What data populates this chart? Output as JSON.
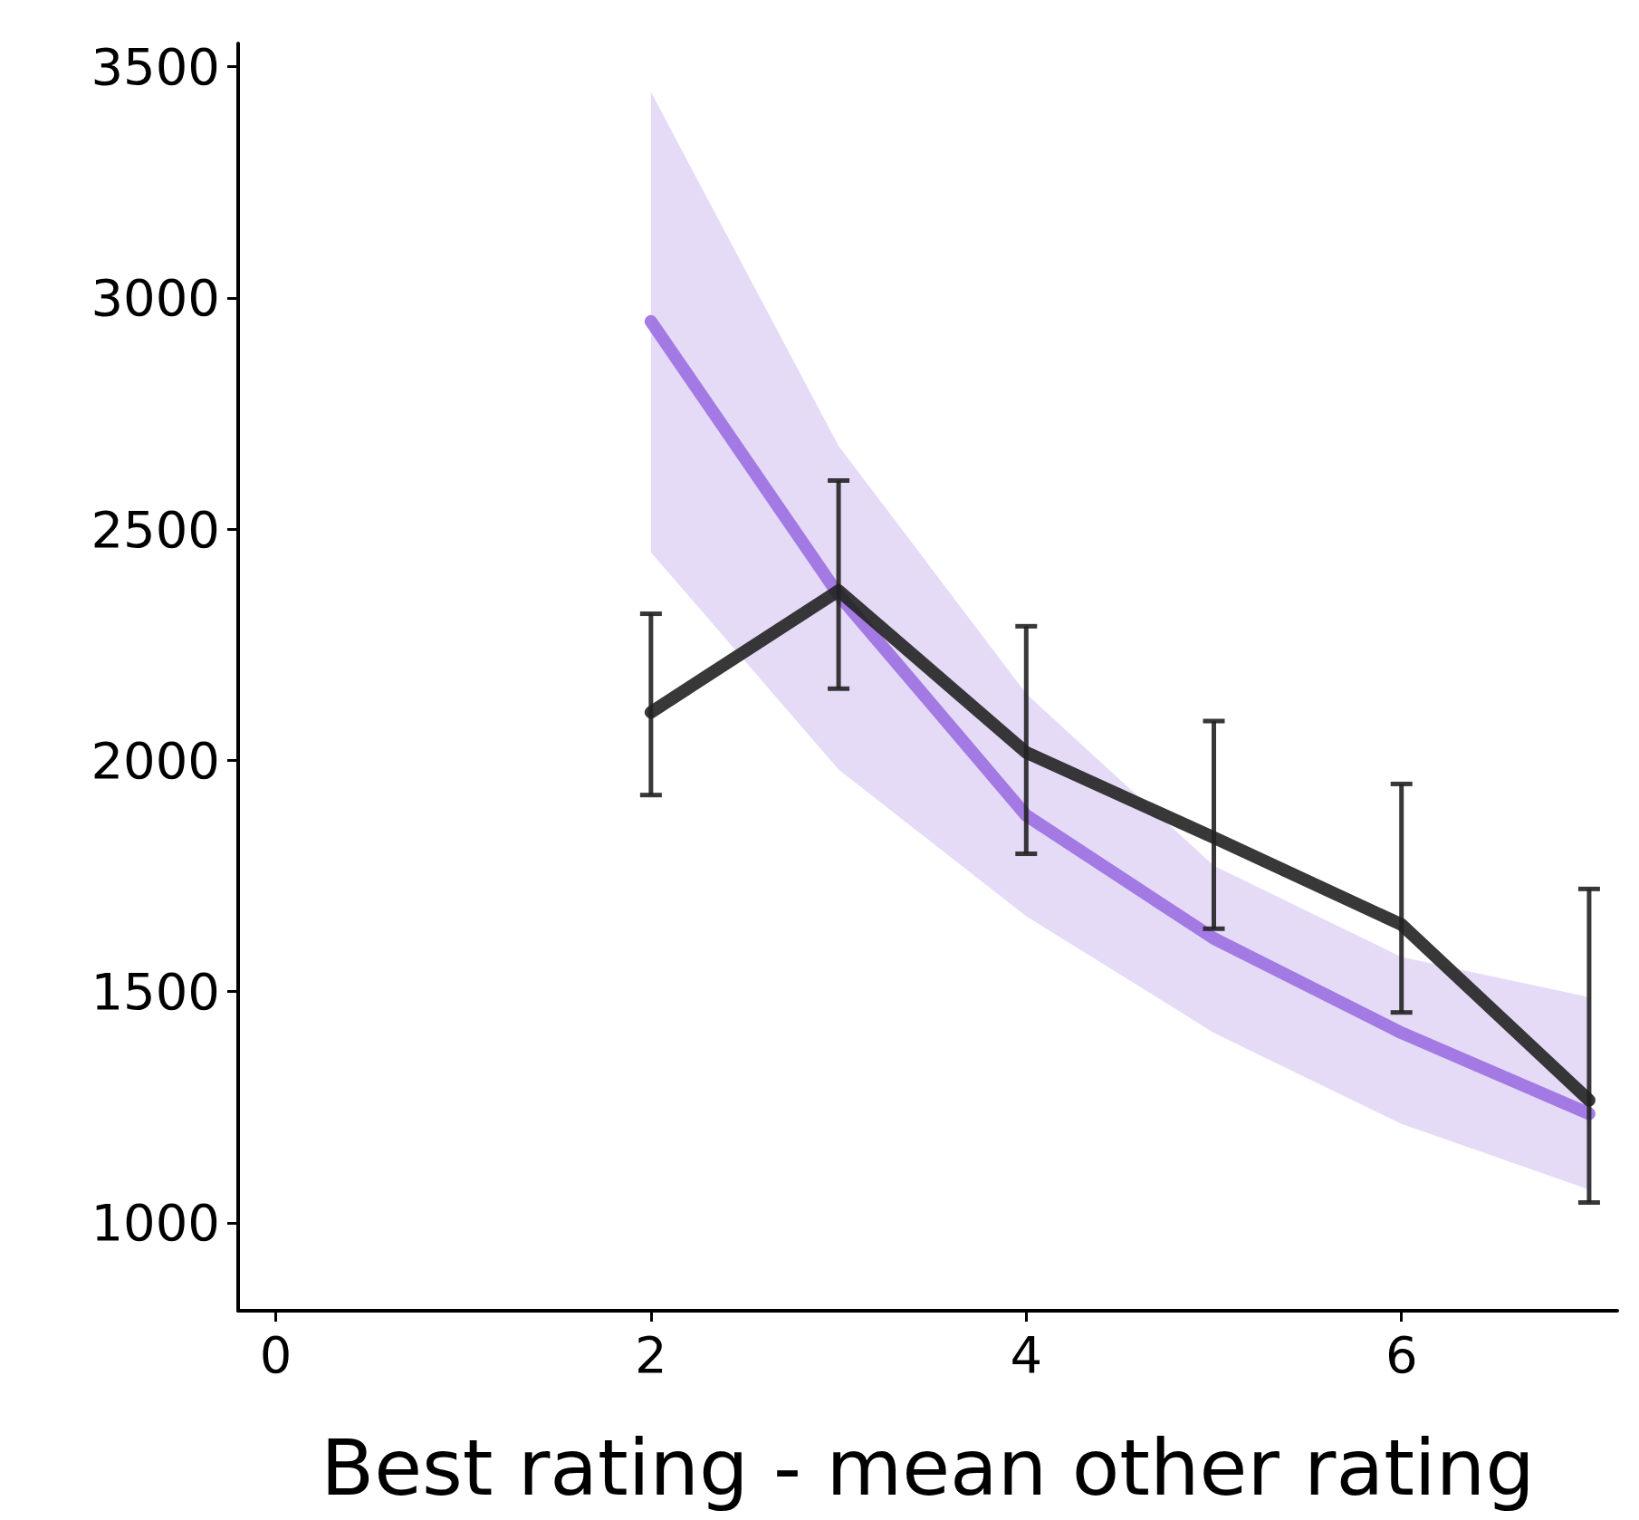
{
  "chart_data": {
    "type": "line",
    "xlabel": "Best rating - mean other rating",
    "x": [
      2,
      3,
      4,
      5,
      6,
      7
    ],
    "xlim": [
      -0.2,
      7.15
    ],
    "xticks": [
      0,
      2,
      4,
      6
    ],
    "ylim": [
      810,
      3550
    ],
    "yticks": [
      1000,
      1500,
      2000,
      2500,
      3000,
      3500
    ],
    "grid": false,
    "marker": "none",
    "line_style": "solid",
    "series": [
      {
        "color": "#9b6fe0",
        "values": [
          2949,
          2358,
          1881,
          1615,
          1411,
          1236
        ],
        "lower": [
          2450,
          1980,
          1663,
          1411,
          1214,
          1072
        ],
        "upper": [
          3445,
          2680,
          2144,
          1772,
          1575,
          1488
        ]
      },
      {
        "color": "#222222",
        "values": [
          2104,
          2367,
          2017,
          1833,
          1645,
          1265
        ],
        "errors": [
          [
            1925,
            2317
          ],
          [
            2155,
            2605
          ],
          [
            1798,
            2290
          ],
          [
            1636,
            2085
          ],
          [
            1455,
            1949
          ],
          [
            1044,
            1722
          ]
        ]
      }
    ]
  }
}
